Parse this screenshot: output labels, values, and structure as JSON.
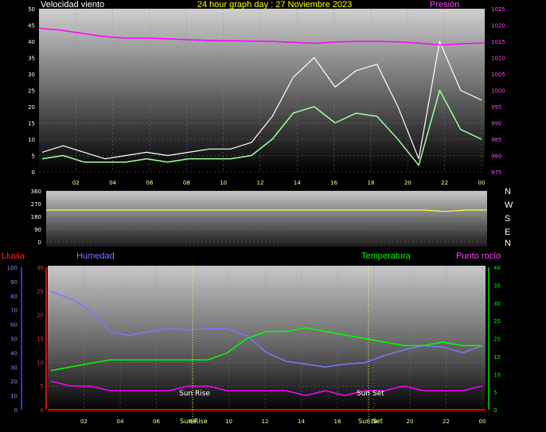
{
  "header": {
    "title": "24 hour graph day : 27 Noviembre 2023",
    "wind_label": "Velocidad viento",
    "pressure_label": "Presión"
  },
  "compass": [
    "N",
    "W",
    "S",
    "E",
    "N"
  ],
  "legend": {
    "rain": "Lluvia",
    "humidity": "Humedad",
    "temperature": "Temperatura",
    "dewpoint": "Punto rocío"
  },
  "annotations": {
    "sunrise": "Sun Rise",
    "sunset": "Sun Set"
  },
  "colors": {
    "title": "#ffff00",
    "wind_gust": "#ffffff",
    "wind_avg": "#a0ffa0",
    "pressure": "#ff00ff",
    "direction": "#ffff44",
    "rain": "#ff0000",
    "humidity": "#7777ff",
    "temperature": "#00ff00",
    "dewpoint": "#ff00ff"
  },
  "chart_data": [
    {
      "type": "line",
      "panel": "wind",
      "x_ticks": [
        "02",
        "04",
        "06",
        "08",
        "10",
        "12",
        "14",
        "16",
        "18",
        "20",
        "22",
        "00"
      ],
      "y_left_ticks": [
        0,
        5,
        10,
        15,
        20,
        25,
        30,
        35,
        40,
        45,
        50
      ],
      "y_right_ticks": [
        975,
        980,
        985,
        990,
        995,
        1000,
        1005,
        1010,
        1015,
        1020,
        1025
      ],
      "ylim_left": [
        0,
        50
      ],
      "ylim_right": [
        975,
        1025
      ],
      "grid": true,
      "series": [
        {
          "name": "Velocidad viento",
          "role": "gust",
          "values": [
            6,
            8,
            6,
            4,
            5,
            6,
            5,
            6,
            7,
            7,
            9,
            17,
            29,
            35,
            26,
            31,
            33,
            20,
            4,
            40,
            25,
            22
          ]
        },
        {
          "name": "Velocidad viento",
          "role": "average",
          "values": [
            4,
            5,
            3,
            3,
            3,
            4,
            3,
            4,
            4,
            4,
            5,
            10,
            18,
            20,
            15,
            18,
            17,
            10,
            2,
            25,
            13,
            10
          ]
        },
        {
          "name": "Presión",
          "values": [
            1019,
            1018.5,
            1017.5,
            1016.5,
            1016,
            1016,
            1015.8,
            1015.5,
            1015.3,
            1015.2,
            1015.1,
            1015,
            1014.7,
            1014.4,
            1014.8,
            1015,
            1015,
            1014.8,
            1014.4,
            1013.9,
            1014.3,
            1014.5
          ]
        }
      ]
    },
    {
      "type": "line",
      "panel": "wind_direction",
      "y_ticks": [
        0,
        90,
        180,
        270,
        360
      ],
      "ylim": [
        0,
        360
      ],
      "grid": true,
      "series": [
        {
          "name": "direction",
          "values": [
            225,
            225,
            225,
            225,
            225,
            225,
            225,
            225,
            225,
            225,
            225,
            225,
            225,
            225,
            225,
            225,
            225,
            225,
            225,
            215,
            225,
            225
          ]
        }
      ]
    },
    {
      "type": "line",
      "panel": "temp_humidity",
      "x_ticks": [
        "02",
        "04",
        "06",
        "08",
        "10",
        "12",
        "14",
        "16",
        "18",
        "20",
        "22",
        "00"
      ],
      "y_humidity_ticks": [
        0,
        10,
        20,
        30,
        40,
        50,
        60,
        70,
        80,
        90,
        100
      ],
      "y_rain_ticks": [
        0,
        5,
        10,
        15,
        20,
        25,
        30
      ],
      "y_temp_ticks": [
        0,
        5,
        10,
        15,
        20,
        25,
        30,
        35,
        40
      ],
      "ylim_humidity": [
        0,
        100
      ],
      "ylim_rain": [
        0,
        30
      ],
      "ylim_temp": [
        0,
        40
      ],
      "grid": true,
      "series": [
        {
          "name": "Humedad",
          "values": [
            83,
            78,
            70,
            55,
            52,
            55,
            57,
            56,
            57,
            57,
            52,
            40,
            34,
            32,
            30,
            32,
            33,
            38,
            42,
            45,
            44,
            40,
            45
          ]
        },
        {
          "name": "Temperatura",
          "values": [
            11,
            12,
            13,
            14,
            14,
            14,
            14,
            14,
            14,
            16,
            20,
            22,
            22,
            23,
            22,
            21,
            20,
            19,
            18,
            18,
            19,
            18,
            18
          ]
        },
        {
          "name": "Punto rocío",
          "values": [
            6,
            5,
            5,
            4,
            4,
            4,
            4,
            5,
            5,
            4,
            4,
            4,
            4,
            3,
            4,
            3,
            4,
            4,
            5,
            4,
            4,
            4,
            5
          ]
        },
        {
          "name": "Lluvia",
          "values": [
            0,
            0,
            0,
            0,
            0,
            0,
            0,
            0,
            0,
            0,
            0,
            0,
            0,
            0,
            0,
            0,
            0,
            0,
            0,
            0,
            0,
            0,
            0
          ]
        }
      ]
    }
  ]
}
